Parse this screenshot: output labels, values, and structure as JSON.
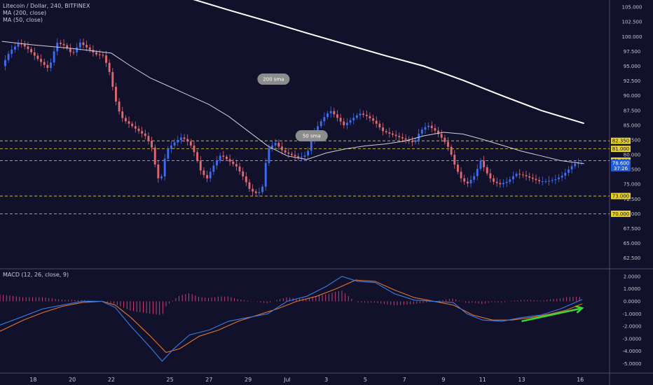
{
  "chart_data": [
    {
      "type": "candlestick",
      "title": "Litecoin / Dollar, 240, BITFINEX",
      "indicators": [
        "MA (200, close)",
        "MA (50, close)"
      ],
      "y_ticks": [
        "105.000",
        "102.500",
        "100.000",
        "97.500",
        "95.000",
        "92.500",
        "90.000",
        "87.500",
        "85.000",
        "82.500",
        "80.000",
        "77.500",
        "75.000",
        "72.500",
        "70.000",
        "67.500",
        "65.000",
        "62.500"
      ],
      "levels": [
        {
          "value": 82.35,
          "label": "82.350"
        },
        {
          "value": 81.0,
          "label": "81.000"
        },
        {
          "value": 79.0,
          "label": "79.000"
        },
        {
          "value": 73.0,
          "label": "73.000"
        },
        {
          "value": 70.0,
          "label": "70.000"
        }
      ],
      "last_price": {
        "value": 78.6,
        "label": "78.600",
        "countdown": "37:26"
      },
      "annotations": [
        {
          "text": "200 sma",
          "price": 92.8,
          "day": 12.3
        },
        {
          "text": "50 sma",
          "price": 83.2,
          "day": 14.25
        }
      ],
      "x_ticks": [
        {
          "label": "18",
          "day": 0
        },
        {
          "label": "20",
          "day": 2
        },
        {
          "label": "22",
          "day": 4
        },
        {
          "label": "25",
          "day": 7
        },
        {
          "label": "27",
          "day": 9
        },
        {
          "label": "29",
          "day": 11
        },
        {
          "label": "Jul",
          "day": 13
        },
        {
          "label": "3",
          "day": 15
        },
        {
          "label": "5",
          "day": 17
        },
        {
          "label": "7",
          "day": 19
        },
        {
          "label": "9",
          "day": 21
        },
        {
          "label": "11",
          "day": 23
        },
        {
          "label": "13",
          "day": 25
        },
        {
          "label": "16",
          "day": 28
        }
      ],
      "ylim": [
        60.8,
        106.2
      ],
      "xlim": [
        -1.7,
        29.5
      ],
      "anchors": [
        {
          "day": -1.6,
          "price": 95
        },
        {
          "day": -1.2,
          "price": 97.5
        },
        {
          "day": -0.7,
          "price": 99
        },
        {
          "day": -0.3,
          "price": 98
        },
        {
          "day": 0.3,
          "price": 96
        },
        {
          "day": 0.8,
          "price": 94.5
        },
        {
          "day": 1.2,
          "price": 99
        },
        {
          "day": 1.6,
          "price": 98.5
        },
        {
          "day": 2.0,
          "price": 97
        },
        {
          "day": 2.4,
          "price": 99
        },
        {
          "day": 2.8,
          "price": 98
        },
        {
          "day": 3.2,
          "price": 97
        },
        {
          "day": 3.6,
          "price": 96.8
        },
        {
          "day": 3.9,
          "price": 94
        },
        {
          "day": 4.1,
          "price": 91
        },
        {
          "day": 4.3,
          "price": 88
        },
        {
          "day": 4.6,
          "price": 86
        },
        {
          "day": 5.0,
          "price": 85
        },
        {
          "day": 5.4,
          "price": 84
        },
        {
          "day": 5.8,
          "price": 83
        },
        {
          "day": 6.1,
          "price": 81
        },
        {
          "day": 6.3,
          "price": 77
        },
        {
          "day": 6.5,
          "price": 75
        },
        {
          "day": 6.7,
          "price": 79
        },
        {
          "day": 6.9,
          "price": 81
        },
        {
          "day": 7.2,
          "price": 82
        },
        {
          "day": 7.6,
          "price": 83
        },
        {
          "day": 8.0,
          "price": 82
        },
        {
          "day": 8.3,
          "price": 80
        },
        {
          "day": 8.6,
          "price": 77
        },
        {
          "day": 8.9,
          "price": 76
        },
        {
          "day": 9.2,
          "price": 78
        },
        {
          "day": 9.6,
          "price": 80
        },
        {
          "day": 10.0,
          "price": 79
        },
        {
          "day": 10.4,
          "price": 78
        },
        {
          "day": 10.8,
          "price": 76
        },
        {
          "day": 11.1,
          "price": 74
        },
        {
          "day": 11.4,
          "price": 73.5
        },
        {
          "day": 11.7,
          "price": 73.8
        },
        {
          "day": 12.0,
          "price": 81
        },
        {
          "day": 12.4,
          "price": 82
        },
        {
          "day": 12.8,
          "price": 80.5
        },
        {
          "day": 13.2,
          "price": 80
        },
        {
          "day": 13.6,
          "price": 79.5
        },
        {
          "day": 14.0,
          "price": 80
        },
        {
          "day": 14.4,
          "price": 84
        },
        {
          "day": 14.8,
          "price": 86
        },
        {
          "day": 15.2,
          "price": 87.5
        },
        {
          "day": 15.5,
          "price": 86.5
        },
        {
          "day": 15.9,
          "price": 85
        },
        {
          "day": 16.3,
          "price": 86
        },
        {
          "day": 16.7,
          "price": 87
        },
        {
          "day": 17.1,
          "price": 86.5
        },
        {
          "day": 17.5,
          "price": 85.5
        },
        {
          "day": 17.9,
          "price": 84
        },
        {
          "day": 18.3,
          "price": 83.5
        },
        {
          "day": 18.7,
          "price": 83
        },
        {
          "day": 19.1,
          "price": 82.5
        },
        {
          "day": 19.5,
          "price": 82
        },
        {
          "day": 19.8,
          "price": 84
        },
        {
          "day": 20.2,
          "price": 85
        },
        {
          "day": 20.6,
          "price": 84
        },
        {
          "day": 21.0,
          "price": 82.5
        },
        {
          "day": 21.3,
          "price": 81
        },
        {
          "day": 21.6,
          "price": 78
        },
        {
          "day": 21.9,
          "price": 76
        },
        {
          "day": 22.2,
          "price": 75
        },
        {
          "day": 22.6,
          "price": 76.5
        },
        {
          "day": 22.9,
          "price": 79
        },
        {
          "day": 23.2,
          "price": 77
        },
        {
          "day": 23.5,
          "price": 75.5
        },
        {
          "day": 23.9,
          "price": 75
        },
        {
          "day": 24.3,
          "price": 75.5
        },
        {
          "day": 24.7,
          "price": 76.8
        },
        {
          "day": 25.1,
          "price": 76.5
        },
        {
          "day": 25.5,
          "price": 76
        },
        {
          "day": 25.9,
          "price": 75.5
        },
        {
          "day": 26.3,
          "price": 75.5
        },
        {
          "day": 26.7,
          "price": 75.8
        },
        {
          "day": 27.1,
          "price": 76.5
        },
        {
          "day": 27.4,
          "price": 77.5
        },
        {
          "day": 27.7,
          "price": 78.5
        },
        {
          "day": 28.1,
          "price": 78.6
        }
      ],
      "ma200": [
        {
          "day": 8.0,
          "price": 106.5
        },
        {
          "day": 10.0,
          "price": 104.5
        },
        {
          "day": 12.0,
          "price": 102.6
        },
        {
          "day": 14.0,
          "price": 100.6
        },
        {
          "day": 16.0,
          "price": 98.7
        },
        {
          "day": 18.0,
          "price": 96.8
        },
        {
          "day": 20.0,
          "price": 95.0
        },
        {
          "day": 22.0,
          "price": 92.6
        },
        {
          "day": 24.0,
          "price": 90.0
        },
        {
          "day": 26.0,
          "price": 87.5
        },
        {
          "day": 28.2,
          "price": 85.3
        }
      ],
      "ma50": [
        {
          "day": -1.6,
          "price": 99.2
        },
        {
          "day": 0.0,
          "price": 98.6
        },
        {
          "day": 2.0,
          "price": 98.0
        },
        {
          "day": 4.0,
          "price": 97.2
        },
        {
          "day": 5.0,
          "price": 95.0
        },
        {
          "day": 6.0,
          "price": 93.0
        },
        {
          "day": 7.0,
          "price": 91.5
        },
        {
          "day": 8.0,
          "price": 90.0
        },
        {
          "day": 9.0,
          "price": 88.5
        },
        {
          "day": 10.0,
          "price": 86.5
        },
        {
          "day": 11.0,
          "price": 84.0
        },
        {
          "day": 12.0,
          "price": 81.5
        },
        {
          "day": 13.0,
          "price": 79.8
        },
        {
          "day": 14.0,
          "price": 79.2
        },
        {
          "day": 15.0,
          "price": 80.3
        },
        {
          "day": 16.0,
          "price": 81.0
        },
        {
          "day": 17.0,
          "price": 81.5
        },
        {
          "day": 18.0,
          "price": 81.8
        },
        {
          "day": 19.0,
          "price": 82.3
        },
        {
          "day": 20.0,
          "price": 83.2
        },
        {
          "day": 21.0,
          "price": 83.8
        },
        {
          "day": 22.0,
          "price": 83.5
        },
        {
          "day": 23.0,
          "price": 82.6
        },
        {
          "day": 24.0,
          "price": 81.6
        },
        {
          "day": 25.0,
          "price": 80.6
        },
        {
          "day": 26.0,
          "price": 79.8
        },
        {
          "day": 27.0,
          "price": 79.0
        },
        {
          "day": 28.2,
          "price": 78.5
        }
      ]
    },
    {
      "type": "macd",
      "title": "MACD (12, 26, close, 9)",
      "y_ticks": [
        "2.0000",
        "1.0000",
        "0.0000",
        "-1.0000",
        "-2.0000",
        "-3.0000",
        "-4.0000",
        "-5.0000"
      ],
      "ylim": [
        -5.7,
        2.55
      ],
      "macd_line": [
        {
          "day": -1.7,
          "value": -1.9
        },
        {
          "day": -0.5,
          "value": -1.2
        },
        {
          "day": 0.5,
          "value": -0.6
        },
        {
          "day": 1.5,
          "value": -0.3
        },
        {
          "day": 2.5,
          "value": 0.0
        },
        {
          "day": 3.5,
          "value": 0.0
        },
        {
          "day": 4.2,
          "value": -0.5
        },
        {
          "day": 5.0,
          "value": -2.0
        },
        {
          "day": 6.0,
          "value": -3.7
        },
        {
          "day": 6.6,
          "value": -4.8
        },
        {
          "day": 7.2,
          "value": -3.8
        },
        {
          "day": 8.0,
          "value": -2.7
        },
        {
          "day": 9.0,
          "value": -2.3
        },
        {
          "day": 10.0,
          "value": -1.6
        },
        {
          "day": 11.0,
          "value": -1.3
        },
        {
          "day": 12.0,
          "value": -1.0
        },
        {
          "day": 13.0,
          "value": 0.0
        },
        {
          "day": 14.0,
          "value": 0.4
        },
        {
          "day": 15.0,
          "value": 1.2
        },
        {
          "day": 15.8,
          "value": 2.0
        },
        {
          "day": 16.6,
          "value": 1.6
        },
        {
          "day": 17.5,
          "value": 1.5
        },
        {
          "day": 18.5,
          "value": 0.6
        },
        {
          "day": 19.5,
          "value": 0.1
        },
        {
          "day": 20.5,
          "value": 0.0
        },
        {
          "day": 21.5,
          "value": -0.1
        },
        {
          "day": 22.2,
          "value": -1.0
        },
        {
          "day": 23.0,
          "value": -1.5
        },
        {
          "day": 24.0,
          "value": -1.6
        },
        {
          "day": 25.0,
          "value": -1.3
        },
        {
          "day": 26.0,
          "value": -1.1
        },
        {
          "day": 27.0,
          "value": -0.6
        },
        {
          "day": 28.1,
          "value": 0.15
        }
      ],
      "signal_line": [
        {
          "day": -1.7,
          "value": -2.4
        },
        {
          "day": -0.5,
          "value": -1.5
        },
        {
          "day": 0.5,
          "value": -0.9
        },
        {
          "day": 1.5,
          "value": -0.4
        },
        {
          "day": 2.5,
          "value": -0.1
        },
        {
          "day": 3.5,
          "value": 0.0
        },
        {
          "day": 4.2,
          "value": -0.3
        },
        {
          "day": 5.0,
          "value": -1.3
        },
        {
          "day": 6.0,
          "value": -2.8
        },
        {
          "day": 6.8,
          "value": -4.1
        },
        {
          "day": 7.5,
          "value": -3.8
        },
        {
          "day": 8.5,
          "value": -2.8
        },
        {
          "day": 9.5,
          "value": -2.3
        },
        {
          "day": 10.5,
          "value": -1.6
        },
        {
          "day": 11.5,
          "value": -1.1
        },
        {
          "day": 12.5,
          "value": -0.6
        },
        {
          "day": 13.5,
          "value": 0.0
        },
        {
          "day": 14.5,
          "value": 0.4
        },
        {
          "day": 15.5,
          "value": 1.0
        },
        {
          "day": 16.5,
          "value": 1.7
        },
        {
          "day": 17.5,
          "value": 1.6
        },
        {
          "day": 18.5,
          "value": 0.9
        },
        {
          "day": 19.5,
          "value": 0.3
        },
        {
          "day": 20.5,
          "value": 0.0
        },
        {
          "day": 21.5,
          "value": -0.3
        },
        {
          "day": 22.5,
          "value": -1.1
        },
        {
          "day": 23.5,
          "value": -1.5
        },
        {
          "day": 24.5,
          "value": -1.5
        },
        {
          "day": 25.5,
          "value": -1.3
        },
        {
          "day": 26.5,
          "value": -1.0
        },
        {
          "day": 27.3,
          "value": -0.7
        },
        {
          "day": 28.1,
          "value": -0.2
        }
      ],
      "arrow": {
        "from": {
          "day": 25.0,
          "value": -1.6
        },
        "to": {
          "day": 28.1,
          "value": -0.55
        }
      },
      "colors": {
        "macd": "#3c7be0",
        "signal": "#e0742e",
        "histogram": "#d8457a",
        "arrow": "#39d834"
      }
    }
  ],
  "colors": {
    "up": "#3d6cf0",
    "down": "#e06870",
    "ma200": "#ffffff",
    "ma50": "#cfcfda",
    "level": "#e8d230",
    "price_tag": "#1e5bd8",
    "background": "#12112b"
  }
}
